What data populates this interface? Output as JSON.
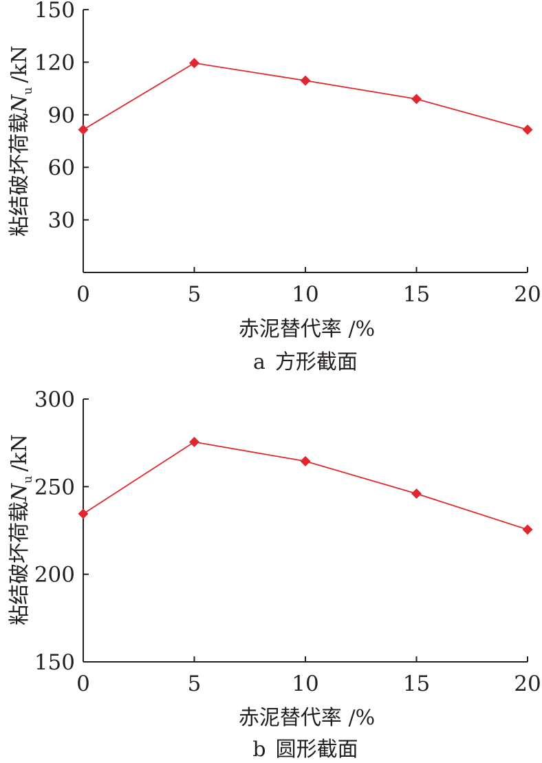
{
  "chart_data": [
    {
      "type": "line",
      "caption_label": "a",
      "caption_text": "方形截面",
      "xlabel": "赤泥替代率 /%",
      "ylabel_main": "粘结破坏荷载",
      "ylabel_var": "N",
      "ylabel_sub": "u",
      "ylabel_unit": "/kN",
      "x": [
        0,
        5,
        10,
        15,
        20
      ],
      "x_tick_labels": [
        "0",
        "5",
        "10",
        "15",
        "20"
      ],
      "y_tick_labels": [
        "30",
        "60",
        "90",
        "120",
        "150"
      ],
      "y_ticks": [
        30,
        60,
        90,
        120,
        150
      ],
      "ylim": [
        0,
        150
      ],
      "xlim": [
        0,
        20
      ],
      "series": [
        {
          "values": [
            81.5,
            119.5,
            109.5,
            99,
            81.5
          ],
          "color": "#e0262e",
          "marker": "diamond"
        }
      ],
      "grid": false
    },
    {
      "type": "line",
      "caption_label": "b",
      "caption_text": "圆形截面",
      "xlabel": "赤泥替代率 /%",
      "ylabel_main": "粘结破坏荷载",
      "ylabel_var": "N",
      "ylabel_sub": "u",
      "ylabel_unit": "/kN",
      "x": [
        0,
        5,
        10,
        15,
        20
      ],
      "x_tick_labels": [
        "0",
        "5",
        "10",
        "15",
        "20"
      ],
      "y_tick_labels": [
        "150",
        "200",
        "250",
        "300"
      ],
      "y_ticks": [
        150,
        200,
        250,
        300
      ],
      "ylim": [
        150,
        300
      ],
      "xlim": [
        0,
        20
      ],
      "series": [
        {
          "values": [
            234.5,
            275.5,
            264.5,
            246,
            225.5
          ],
          "color": "#e0262e",
          "marker": "diamond"
        }
      ],
      "grid": false
    }
  ]
}
